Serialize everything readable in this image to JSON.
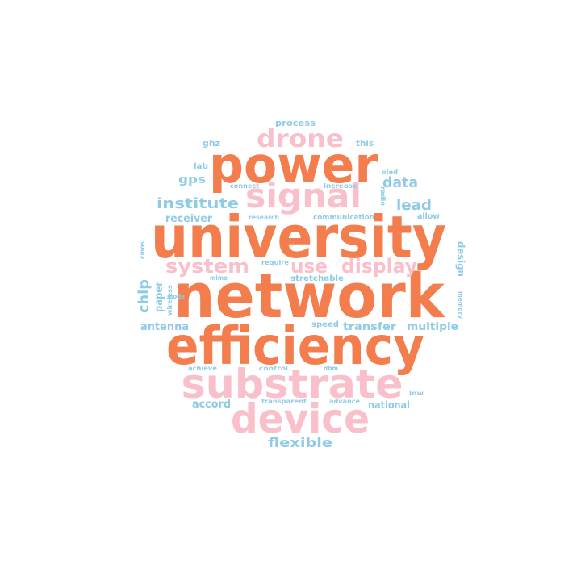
{
  "colors": {
    "orange": "#F47D4E",
    "pink": "#F9C0CB",
    "blue": "#8FCBE6"
  },
  "words": [
    {
      "text": "network",
      "color": "orange"
    },
    {
      "text": "university",
      "color": "orange"
    },
    {
      "text": "efficiency",
      "color": "orange"
    },
    {
      "text": "power",
      "color": "orange"
    },
    {
      "text": "substrate",
      "color": "pink"
    },
    {
      "text": "device",
      "color": "pink"
    },
    {
      "text": "signal",
      "color": "pink"
    },
    {
      "text": "drone",
      "color": "pink"
    },
    {
      "text": "system",
      "color": "pink"
    },
    {
      "text": "use",
      "color": "pink"
    },
    {
      "text": "display",
      "color": "pink"
    },
    {
      "text": "institute",
      "color": "blue"
    },
    {
      "text": "data",
      "color": "blue"
    },
    {
      "text": "lead",
      "color": "blue"
    },
    {
      "text": "flexible",
      "color": "blue"
    },
    {
      "text": "chip",
      "color": "blue"
    },
    {
      "text": "gps",
      "color": "blue"
    },
    {
      "text": "receiver",
      "color": "blue"
    },
    {
      "text": "antenna",
      "color": "blue"
    },
    {
      "text": "transfer",
      "color": "blue"
    },
    {
      "text": "multiple",
      "color": "blue"
    },
    {
      "text": "accord",
      "color": "blue"
    },
    {
      "text": "national",
      "color": "blue"
    },
    {
      "text": "paper",
      "color": "blue"
    },
    {
      "text": "design",
      "color": "blue"
    },
    {
      "text": "process",
      "color": "blue"
    },
    {
      "text": "ghz",
      "color": "blue"
    },
    {
      "text": "this",
      "color": "blue"
    },
    {
      "text": "lab",
      "color": "blue"
    },
    {
      "text": "allow",
      "color": "blue"
    },
    {
      "text": "speed",
      "color": "blue"
    },
    {
      "text": "stretchable",
      "color": "blue"
    },
    {
      "text": "communication",
      "color": "blue"
    },
    {
      "text": "research",
      "color": "blue"
    },
    {
      "text": "connect",
      "color": "blue"
    },
    {
      "text": "increase",
      "color": "blue"
    },
    {
      "text": "oled",
      "color": "blue"
    },
    {
      "text": "radio",
      "color": "blue"
    },
    {
      "text": "require",
      "color": "blue"
    },
    {
      "text": "mimo",
      "color": "blue"
    },
    {
      "text": "cmos",
      "color": "blue"
    },
    {
      "text": "mode",
      "color": "blue"
    },
    {
      "text": "wireless",
      "color": "blue"
    },
    {
      "text": "memory",
      "color": "blue"
    },
    {
      "text": "achieve",
      "color": "blue"
    },
    {
      "text": "control",
      "color": "blue"
    },
    {
      "text": "dbm",
      "color": "blue"
    },
    {
      "text": "low",
      "color": "blue"
    },
    {
      "text": "transparent",
      "color": "blue"
    },
    {
      "text": "advance",
      "color": "blue"
    }
  ]
}
